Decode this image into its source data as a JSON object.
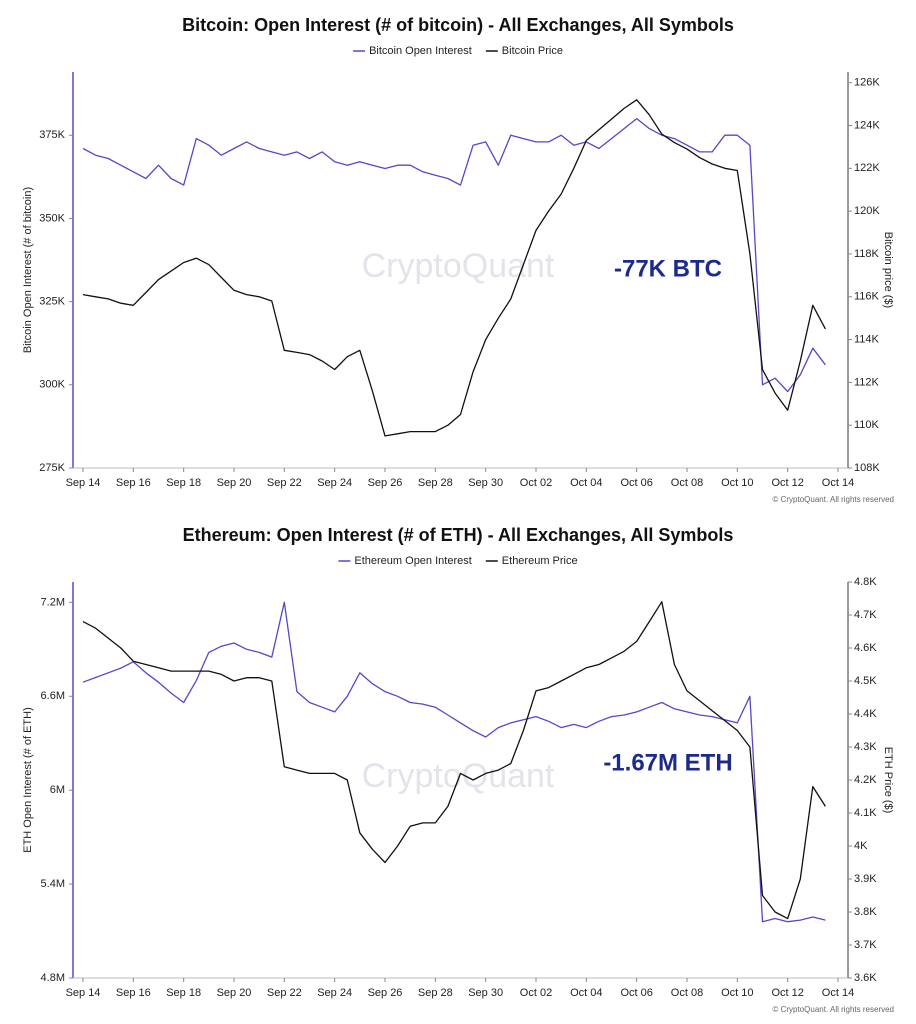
{
  "chart_data": [
    {
      "type": "line",
      "title": "Bitcoin: Open Interest (# of bitcoin) - All Exchanges, All Symbols",
      "ylabel": "Bitcoin Open Interest (# of bitcoin)",
      "y2label": "Bitcoin price ($)",
      "annotation": "-77K BTC",
      "annotation_color": "#1c2a8c",
      "watermark": "CryptoQuant",
      "copyright": "© CryptoQuant. All rights reserved",
      "categories": [
        "Sep 14",
        null,
        null,
        null,
        "Sep 16",
        null,
        null,
        null,
        "Sep 18",
        null,
        null,
        null,
        "Sep 20",
        null,
        null,
        null,
        "Sep 22",
        null,
        null,
        null,
        "Sep 24",
        null,
        null,
        null,
        "Sep 26",
        null,
        null,
        null,
        "Sep 28",
        null,
        null,
        null,
        "Sep 30",
        null,
        null,
        null,
        "Oct 02",
        null,
        null,
        null,
        "Oct 04",
        null,
        null,
        null,
        "Oct 06",
        null,
        null,
        null,
        "Oct 08",
        null,
        null,
        null,
        "Oct 10",
        null,
        null,
        null,
        "Oct 12",
        null,
        null,
        null,
        "Oct 14"
      ],
      "series": [
        {
          "name": "Bitcoin Open Interest",
          "color": "#5548c8",
          "axis": "y",
          "values": [
            371000,
            369000,
            368000,
            366000,
            364000,
            362000,
            366000,
            362000,
            360000,
            374000,
            372000,
            369000,
            371000,
            373000,
            371000,
            370000,
            369000,
            370000,
            368000,
            370000,
            367000,
            366000,
            367000,
            366000,
            365000,
            366000,
            366000,
            364000,
            363000,
            362000,
            360000,
            372000,
            373000,
            366000,
            375000,
            374000,
            373000,
            373000,
            375000,
            372000,
            373000,
            371000,
            374000,
            377000,
            380000,
            377000,
            375000,
            374000,
            372000,
            370000,
            370000,
            375000,
            375000,
            372000,
            300000,
            302000,
            298000,
            303000,
            311000,
            306000,
            null
          ]
        },
        {
          "name": "Bitcoin Price",
          "color": "#111111",
          "axis": "y2",
          "values": [
            116100,
            116000,
            115900,
            115700,
            115600,
            116200,
            116800,
            117200,
            117600,
            117800,
            117500,
            116900,
            116300,
            116100,
            116000,
            115800,
            113500,
            113400,
            113300,
            113000,
            112600,
            113200,
            113500,
            111600,
            109500,
            109600,
            109700,
            109700,
            109700,
            110000,
            110500,
            112500,
            114000,
            115000,
            115900,
            117500,
            119100,
            120000,
            120800,
            122000,
            123300,
            123800,
            124300,
            124800,
            125200,
            124500,
            123600,
            123200,
            122900,
            122500,
            122200,
            122000,
            121900,
            118000,
            112600,
            111500,
            110700,
            113000,
            115600,
            114500,
            null
          ]
        }
      ],
      "ylim": [
        275000,
        394000
      ],
      "yticks": [
        {
          "value": 275000,
          "label": "275K"
        },
        {
          "value": 300000,
          "label": "300K"
        },
        {
          "value": 325000,
          "label": "325K"
        },
        {
          "value": 350000,
          "label": "350K"
        },
        {
          "value": 375000,
          "label": "375K"
        }
      ],
      "y2lim": [
        108000,
        126500
      ],
      "y2ticks": [
        {
          "value": 108000,
          "label": "108K"
        },
        {
          "value": 110000,
          "label": "110K"
        },
        {
          "value": 112000,
          "label": "112K"
        },
        {
          "value": 114000,
          "label": "114K"
        },
        {
          "value": 116000,
          "label": "116K"
        },
        {
          "value": 118000,
          "label": "118K"
        },
        {
          "value": 120000,
          "label": "120K"
        },
        {
          "value": 122000,
          "label": "122K"
        },
        {
          "value": 124000,
          "label": "124K"
        },
        {
          "value": 126000,
          "label": "126K"
        }
      ],
      "grid": false
    },
    {
      "type": "line",
      "title": "Ethereum: Open Interest (# of ETH) - All Exchanges, All Symbols",
      "ylabel": "ETH Open Interest (# of ETH)",
      "y2label": "ETH Price ($)",
      "annotation": "-1.67M ETH",
      "annotation_color": "#1c2a8c",
      "watermark": "CryptoQuant",
      "copyright": "© CryptoQuant. All rights reserved",
      "categories": [
        "Sep 14",
        null,
        null,
        null,
        "Sep 16",
        null,
        null,
        null,
        "Sep 18",
        null,
        null,
        null,
        "Sep 20",
        null,
        null,
        null,
        "Sep 22",
        null,
        null,
        null,
        "Sep 24",
        null,
        null,
        null,
        "Sep 26",
        null,
        null,
        null,
        "Sep 28",
        null,
        null,
        null,
        "Sep 30",
        null,
        null,
        null,
        "Oct 02",
        null,
        null,
        null,
        "Oct 04",
        null,
        null,
        null,
        "Oct 06",
        null,
        null,
        null,
        "Oct 08",
        null,
        null,
        null,
        "Oct 10",
        null,
        null,
        null,
        "Oct 12",
        null,
        null,
        null,
        "Oct 14"
      ],
      "series": [
        {
          "name": "Ethereum Open Interest",
          "color": "#5548c8",
          "axis": "y",
          "values": [
            6690000,
            6720000,
            6750000,
            6780000,
            6820000,
            6750000,
            6690000,
            6620000,
            6560000,
            6700000,
            6880000,
            6920000,
            6940000,
            6900000,
            6880000,
            6850000,
            7200000,
            6630000,
            6560000,
            6530000,
            6500000,
            6600000,
            6750000,
            6680000,
            6630000,
            6600000,
            6560000,
            6550000,
            6530000,
            6480000,
            6430000,
            6380000,
            6340000,
            6400000,
            6430000,
            6450000,
            6470000,
            6440000,
            6400000,
            6420000,
            6400000,
            6440000,
            6470000,
            6480000,
            6500000,
            6530000,
            6560000,
            6520000,
            6500000,
            6480000,
            6470000,
            6450000,
            6430000,
            6600000,
            5160000,
            5180000,
            5160000,
            5170000,
            5190000,
            5170000,
            null
          ]
        },
        {
          "name": "Ethereum Price",
          "color": "#111111",
          "axis": "y2",
          "values": [
            4680,
            4660,
            4630,
            4600,
            4560,
            4550,
            4540,
            4530,
            4530,
            4530,
            4530,
            4520,
            4500,
            4510,
            4510,
            4500,
            4240,
            4230,
            4220,
            4220,
            4220,
            4200,
            4040,
            3990,
            3950,
            4000,
            4060,
            4070,
            4070,
            4120,
            4220,
            4200,
            4220,
            4230,
            4250,
            4350,
            4470,
            4480,
            4500,
            4520,
            4540,
            4550,
            4570,
            4590,
            4620,
            4680,
            4740,
            4550,
            4470,
            4440,
            4410,
            4380,
            4350,
            4300,
            3850,
            3800,
            3780,
            3900,
            4180,
            4120,
            null
          ]
        }
      ],
      "ylim": [
        4800000,
        7330000
      ],
      "yticks": [
        {
          "value": 4800000,
          "label": "4.8M"
        },
        {
          "value": 5400000,
          "label": "5.4M"
        },
        {
          "value": 6000000,
          "label": "6M"
        },
        {
          "value": 6600000,
          "label": "6.6M"
        },
        {
          "value": 7200000,
          "label": "7.2M"
        }
      ],
      "y2lim": [
        3600,
        4800
      ],
      "y2ticks": [
        {
          "value": 3600,
          "label": "3.6K"
        },
        {
          "value": 3700,
          "label": "3.7K"
        },
        {
          "value": 3800,
          "label": "3.8K"
        },
        {
          "value": 3900,
          "label": "3.9K"
        },
        {
          "value": 4000,
          "label": "4K"
        },
        {
          "value": 4100,
          "label": "4.1K"
        },
        {
          "value": 4200,
          "label": "4.2K"
        },
        {
          "value": 4300,
          "label": "4.3K"
        },
        {
          "value": 4400,
          "label": "4.4K"
        },
        {
          "value": 4500,
          "label": "4.5K"
        },
        {
          "value": 4600,
          "label": "4.6K"
        },
        {
          "value": 4700,
          "label": "4.7K"
        },
        {
          "value": 4800,
          "label": "4.8K"
        }
      ],
      "grid": false
    }
  ]
}
